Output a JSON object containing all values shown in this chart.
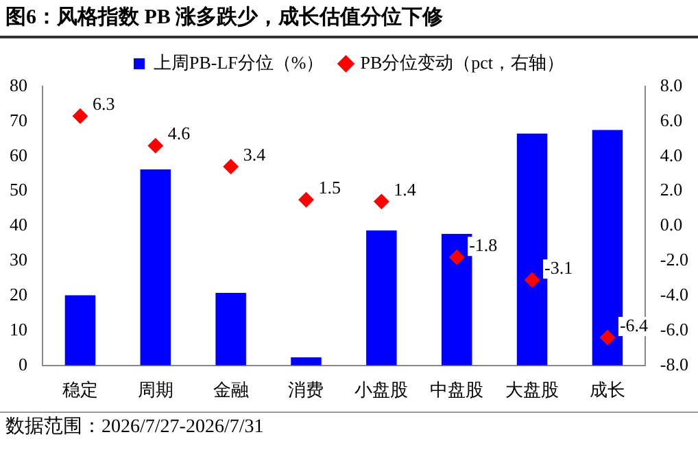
{
  "chart_data": {
    "type": "bar",
    "title": "图6：风格指数 PB 涨多跌少，成长估值分位下修",
    "categories": [
      "稳定",
      "周期",
      "金融",
      "消费",
      "小盘股",
      "中盘股",
      "大盘股",
      "成长"
    ],
    "series": [
      {
        "name": "上周PB-LF分位（%）",
        "color": "#0000ff",
        "values": [
          20.1,
          56.2,
          20.8,
          2.3,
          38.7,
          37.7,
          66.5,
          67.5
        ]
      },
      {
        "name": "PB分位变动（pct，右轴）",
        "type": "scatter",
        "axis": "y2",
        "marker": "diamond",
        "color": "#ff0000",
        "values": [
          6.3,
          4.6,
          3.4,
          1.5,
          1.4,
          -1.8,
          -3.1,
          -6.4
        ],
        "value_labels": [
          "6.3",
          "4.6",
          "3.4",
          "1.5",
          "1.4",
          "-1.8",
          "-3.1",
          "-6.4"
        ]
      }
    ],
    "ylim": [
      0,
      80
    ],
    "yticks": [
      0,
      10,
      20,
      30,
      40,
      50,
      60,
      70,
      80
    ],
    "y2lim": [
      -8,
      8
    ],
    "y2ticks": [
      {
        "value": -8,
        "label": "-8.0"
      },
      {
        "value": -6,
        "label": "-6.0"
      },
      {
        "value": -4,
        "label": "-4.0"
      },
      {
        "value": -2,
        "label": "-2.0"
      },
      {
        "value": 0,
        "label": "0.0"
      },
      {
        "value": 2,
        "label": "2.0"
      },
      {
        "value": 4,
        "label": "4.0"
      },
      {
        "value": 6,
        "label": "6.0"
      },
      {
        "value": 8,
        "label": "8.0"
      }
    ],
    "grid": false,
    "legend": "top",
    "annotations": [
      "数据范围：2026/7/27-2026/7/31"
    ]
  }
}
